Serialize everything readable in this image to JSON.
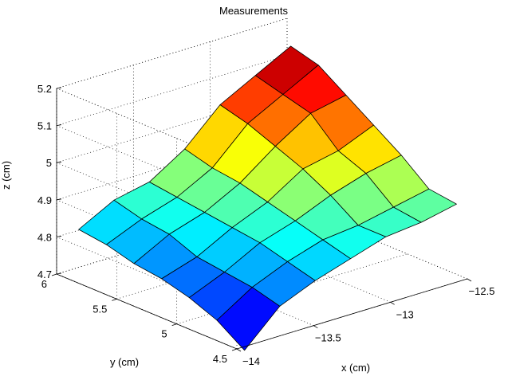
{
  "chart_data": {
    "type": "surface",
    "title": "Measurements",
    "xlabel": "x (cm)",
    "ylabel": "y (cm)",
    "zlabel": "z (cm)",
    "xlim": [
      -14,
      -12.5
    ],
    "ylim": [
      4.5,
      6
    ],
    "zlim": [
      4.7,
      5.2
    ],
    "x_ticks": [
      -14,
      -13.5,
      -13,
      -12.5
    ],
    "x_tick_labels": [
      "−14",
      "−13.5",
      "−13",
      "−12.5"
    ],
    "y_ticks": [
      4.5,
      5,
      5.5,
      6
    ],
    "y_tick_labels": [
      "4.5",
      "5",
      "5.5",
      "6"
    ],
    "z_ticks": [
      4.7,
      4.8,
      4.9,
      5,
      5.1,
      5.2
    ],
    "z_tick_labels": [
      "4.7",
      "4.8",
      "4.9",
      "5",
      "5.1",
      "5.2"
    ],
    "grid": true,
    "colormap": "jet",
    "x": [
      -13.95,
      -13.72,
      -13.49,
      -13.26,
      -13.03,
      -12.8,
      -12.57
    ],
    "y": [
      4.5,
      4.73,
      4.96,
      5.19,
      5.42,
      5.65,
      5.88
    ],
    "z": [
      [
        4.69,
        4.78,
        4.82,
        4.85,
        4.88,
        4.89,
        4.91
      ],
      [
        4.74,
        4.8,
        4.84,
        4.87,
        4.88,
        4.9,
        4.92
      ],
      [
        4.77,
        4.81,
        4.86,
        4.89,
        4.93,
        4.96,
        4.98
      ],
      [
        4.79,
        4.82,
        4.87,
        4.91,
        4.97,
        4.99,
        5.03
      ],
      [
        4.8,
        4.85,
        4.88,
        4.93,
        5.0,
        5.06,
        5.08
      ],
      [
        4.82,
        4.86,
        4.89,
        4.94,
        5.03,
        5.08,
        5.13
      ],
      [
        4.83,
        4.88,
        4.9,
        4.96,
        5.05,
        5.1,
        5.15
      ]
    ]
  }
}
